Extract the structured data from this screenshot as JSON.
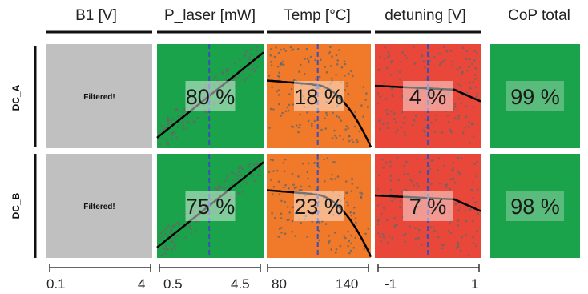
{
  "chart_data": {
    "type": "heatmap",
    "title": "",
    "columns": [
      {
        "label": "B1 [V]",
        "range": [
          0.1,
          4
        ],
        "tick_labels": [
          "0.1",
          "4"
        ]
      },
      {
        "label": "P_laser [mW]",
        "range": [
          0.5,
          4.5
        ],
        "tick_labels": [
          "0.5",
          "4.5"
        ]
      },
      {
        "label": "Temp [°C]",
        "range": [
          80,
          140
        ],
        "tick_labels": [
          "80",
          "140"
        ]
      },
      {
        "label": "detuning [V]",
        "range": [
          -1,
          1
        ],
        "tick_labels": [
          "-1",
          "1"
        ]
      },
      {
        "label": "CoP total"
      }
    ],
    "rows": [
      "DC_A",
      "DC_B"
    ],
    "cells": [
      [
        "Filtered!",
        "80 %",
        "18 %",
        "4 %",
        "99 %"
      ],
      [
        "Filtered!",
        "75 %",
        "23 %",
        "7 %",
        "98 %"
      ]
    ],
    "values_pct": [
      [
        null,
        80,
        18,
        4,
        99
      ],
      [
        null,
        75,
        23,
        7,
        98
      ]
    ],
    "colors": {
      "filtered": "#c0c0c0",
      "high": "#1aa34a",
      "medium": "#f07a2a",
      "low": "#e8473a",
      "trend_line": "#000000",
      "marker_line": "#3a4fb8",
      "points": "#666666"
    }
  }
}
